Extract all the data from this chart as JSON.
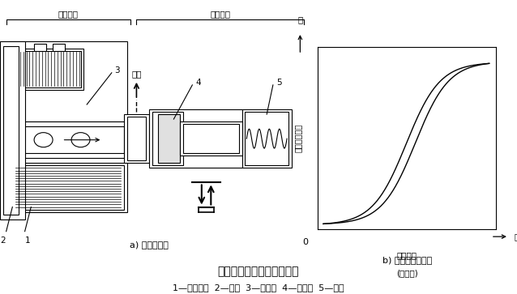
{
  "title": "占空比式电磁阀结构与原理",
  "subtitle": "1—电磁线圈  2—滑阀  3—滑阀轴  4—控制阀  5—弹簧",
  "label_a": "a) 结构示意图",
  "label_b": "b) 空占比调节曲线",
  "section_left": "电磁部分",
  "section_right": "调压部分",
  "label_out": "排出",
  "label_3": "3",
  "label_4": "4",
  "label_5": "5",
  "label_2": "2",
  "label_1": "1",
  "ylabel": "线性电磁压力",
  "ylabel_top": "高",
  "xlabel_top": "通电电流",
  "xlabel_bot": "(空占比)",
  "xlabel_right": "大",
  "graph_bg": "#ffffff",
  "line_color": "#000000",
  "background_color": "#ffffff"
}
